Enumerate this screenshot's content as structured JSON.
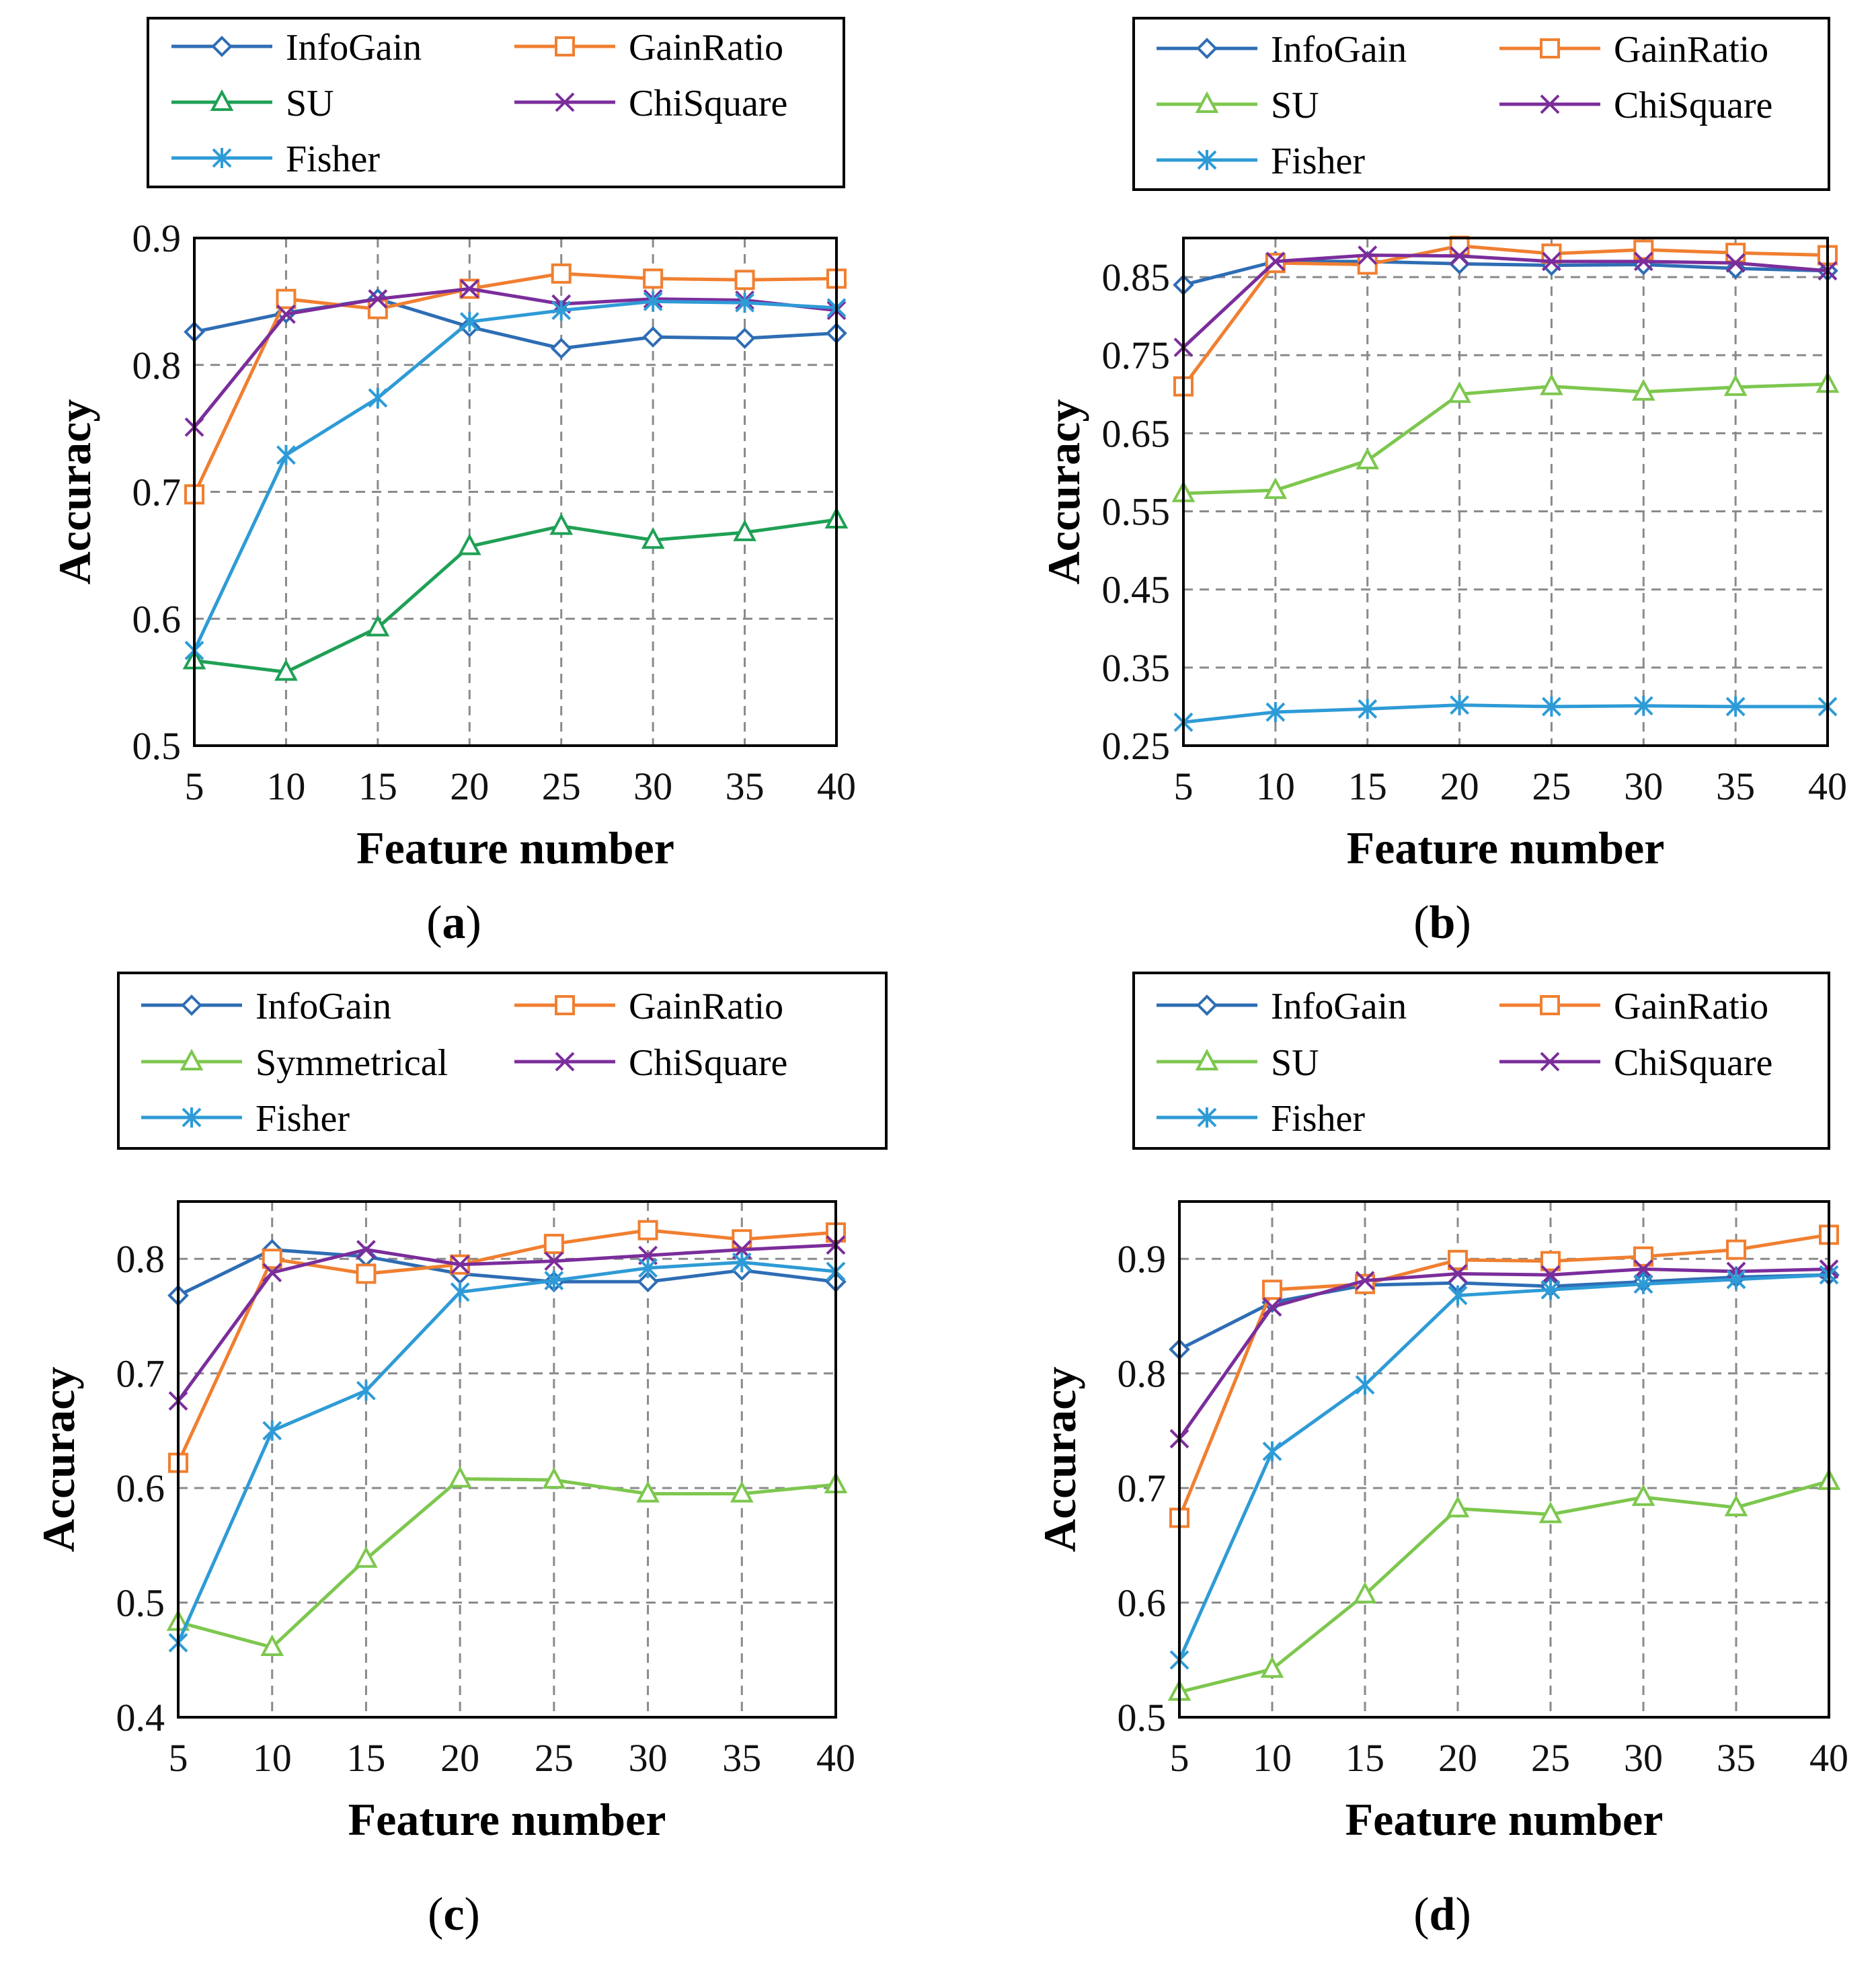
{
  "figure": {
    "xlabel": "Feature number",
    "ylabel": "Accuracy"
  },
  "chart_data": [
    {
      "type": "line",
      "panel_label": "a",
      "xlabel": "Feature number",
      "ylabel": "Accuracy",
      "x": [
        5,
        10,
        15,
        20,
        25,
        30,
        35,
        40
      ],
      "ylim": [
        0.5,
        0.9
      ],
      "yticks": [
        "0.5",
        "0.6",
        "0.7",
        "0.8",
        "0.9"
      ],
      "grid": true,
      "legend_position": "top",
      "series": [
        {
          "name": "InfoGain",
          "marker": "diamond",
          "color": "#2E6DB4",
          "values": [
            0.826,
            0.841,
            0.852,
            0.83,
            0.813,
            0.822,
            0.821,
            0.825
          ]
        },
        {
          "name": "GainRatio",
          "marker": "square",
          "color": "#F07F30",
          "values": [
            0.698,
            0.852,
            0.844,
            0.86,
            0.872,
            0.868,
            0.867,
            0.868
          ]
        },
        {
          "name": "SU",
          "marker": "triangle",
          "color": "#1FA055",
          "values": [
            0.567,
            0.558,
            0.593,
            0.657,
            0.673,
            0.662,
            0.668,
            0.678
          ]
        },
        {
          "name": "ChiSquare",
          "marker": "x",
          "color": "#7B2D9B",
          "values": [
            0.751,
            0.84,
            0.852,
            0.86,
            0.848,
            0.852,
            0.851,
            0.843
          ]
        },
        {
          "name": "Fisher",
          "marker": "star",
          "color": "#2E9BD6",
          "values": [
            0.575,
            0.729,
            0.774,
            0.834,
            0.843,
            0.85,
            0.849,
            0.845
          ]
        }
      ]
    },
    {
      "type": "line",
      "panel_label": "b",
      "xlabel": "Feature number",
      "ylabel": "Accuracy",
      "x": [
        5,
        10,
        15,
        20,
        25,
        30,
        35,
        40
      ],
      "ylim": [
        0.25,
        0.9
      ],
      "yticks": [
        "0.25",
        "0.35",
        "0.45",
        "0.55",
        "0.65",
        "0.75",
        "0.85"
      ],
      "grid": true,
      "legend_position": "top",
      "series": [
        {
          "name": "InfoGain",
          "marker": "diamond",
          "color": "#2E6DB4",
          "values": [
            0.84,
            0.87,
            0.87,
            0.867,
            0.865,
            0.866,
            0.861,
            0.858
          ]
        },
        {
          "name": "GainRatio",
          "marker": "square",
          "color": "#F07F30",
          "values": [
            0.71,
            0.868,
            0.866,
            0.89,
            0.88,
            0.885,
            0.881,
            0.878
          ]
        },
        {
          "name": "SU",
          "marker": "triangle",
          "color": "#7DC74E",
          "values": [
            0.573,
            0.577,
            0.615,
            0.7,
            0.71,
            0.703,
            0.709,
            0.713
          ]
        },
        {
          "name": "ChiSquare",
          "marker": "x",
          "color": "#7B2D9B",
          "values": [
            0.76,
            0.87,
            0.878,
            0.877,
            0.87,
            0.87,
            0.868,
            0.858
          ]
        },
        {
          "name": "Fisher",
          "marker": "star",
          "color": "#2E9BD6",
          "values": [
            0.28,
            0.293,
            0.297,
            0.302,
            0.3,
            0.301,
            0.3,
            0.3
          ]
        }
      ]
    },
    {
      "type": "line",
      "panel_label": "c",
      "xlabel": "Feature number",
      "ylabel": "Accuracy",
      "x": [
        5,
        10,
        15,
        20,
        25,
        30,
        35,
        40
      ],
      "ylim": [
        0.4,
        0.85
      ],
      "yticks": [
        "0.4",
        "0.5",
        "0.6",
        "0.7",
        "0.8"
      ],
      "grid": true,
      "legend_position": "top",
      "series": [
        {
          "name": "InfoGain",
          "marker": "diamond",
          "color": "#2E6DB4",
          "values": [
            0.768,
            0.808,
            0.802,
            0.787,
            0.78,
            0.78,
            0.79,
            0.78
          ]
        },
        {
          "name": "GainRatio",
          "marker": "square",
          "color": "#F07F30",
          "values": [
            0.622,
            0.8,
            0.787,
            0.795,
            0.813,
            0.825,
            0.817,
            0.823
          ]
        },
        {
          "name": "Symmetrical",
          "marker": "triangle",
          "color": "#7DC74E",
          "values": [
            0.483,
            0.461,
            0.538,
            0.608,
            0.607,
            0.595,
            0.595,
            0.603
          ]
        },
        {
          "name": "ChiSquare",
          "marker": "x",
          "color": "#7B2D9B",
          "values": [
            0.676,
            0.788,
            0.808,
            0.795,
            0.798,
            0.803,
            0.808,
            0.812
          ]
        },
        {
          "name": "Fisher",
          "marker": "star",
          "color": "#2E9BD6",
          "values": [
            0.465,
            0.65,
            0.685,
            0.771,
            0.781,
            0.792,
            0.797,
            0.789
          ]
        }
      ]
    },
    {
      "type": "line",
      "panel_label": "d",
      "xlabel": "Feature number",
      "ylabel": "Accuracy",
      "x": [
        5,
        10,
        15,
        20,
        25,
        30,
        35,
        40
      ],
      "ylim": [
        0.5,
        0.95
      ],
      "yticks": [
        "0.5",
        "0.6",
        "0.7",
        "0.8",
        "0.9"
      ],
      "grid": true,
      "legend_position": "top",
      "series": [
        {
          "name": "InfoGain",
          "marker": "diamond",
          "color": "#2E6DB4",
          "values": [
            0.821,
            0.862,
            0.877,
            0.879,
            0.876,
            0.88,
            0.884,
            0.886
          ]
        },
        {
          "name": "GainRatio",
          "marker": "square",
          "color": "#F07F30",
          "values": [
            0.674,
            0.873,
            0.878,
            0.899,
            0.898,
            0.902,
            0.908,
            0.921
          ]
        },
        {
          "name": "SU",
          "marker": "triangle",
          "color": "#7DC74E",
          "values": [
            0.522,
            0.542,
            0.607,
            0.682,
            0.677,
            0.692,
            0.683,
            0.706
          ]
        },
        {
          "name": "ChiSquare",
          "marker": "x",
          "color": "#7B2D9B",
          "values": [
            0.743,
            0.858,
            0.881,
            0.887,
            0.886,
            0.891,
            0.889,
            0.891
          ]
        },
        {
          "name": "Fisher",
          "marker": "star",
          "color": "#2E9BD6",
          "values": [
            0.55,
            0.732,
            0.79,
            0.868,
            0.873,
            0.878,
            0.882,
            0.886
          ]
        }
      ]
    }
  ]
}
